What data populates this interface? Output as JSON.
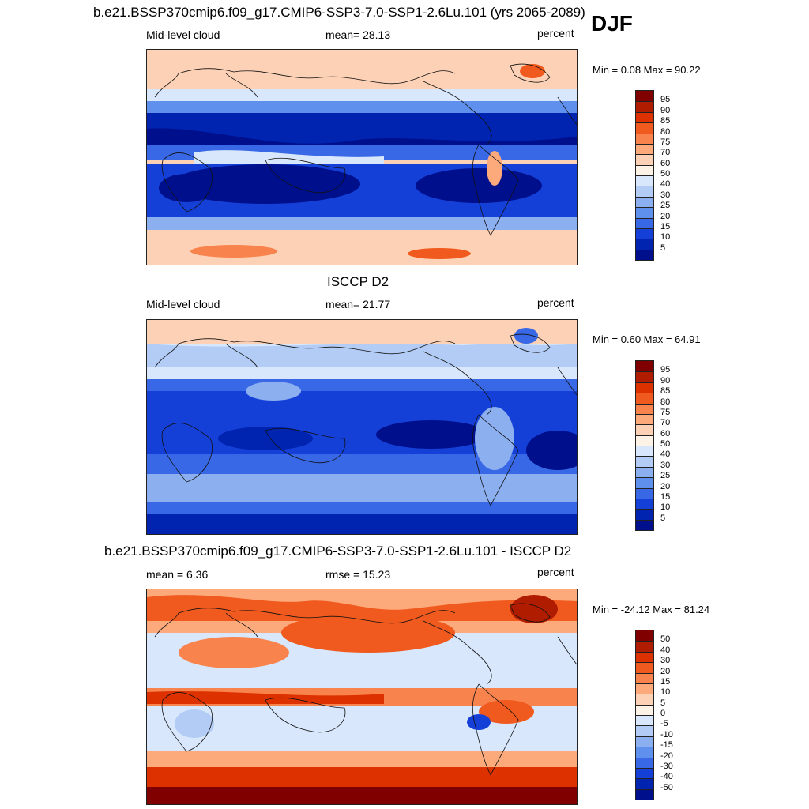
{
  "season": "DJF",
  "panels": [
    {
      "title": "b.e21.BSSP370cmip6.f09_g17.CMIP6-SSP3-7.0-SSP1-2.6Lu.101 (yrs 2065-2089)",
      "left_label": "Mid-level cloud",
      "center_label": "mean=  28.13",
      "units": "percent",
      "minmax": "Min =   0.08 Max =  90.22",
      "colorbar": {
        "labels": [
          "95",
          "90",
          "85",
          "80",
          "75",
          "70",
          "60",
          "50",
          "40",
          "30",
          "25",
          "20",
          "15",
          "10",
          "5"
        ],
        "colors": [
          "#800000",
          "#b01c00",
          "#dd3200",
          "#f05a1e",
          "#f8834c",
          "#fca97c",
          "#fdd1b5",
          "#fdf2e6",
          "#d8e7fb",
          "#b2ccf5",
          "#8caff0",
          "#6090ee",
          "#3868e6",
          "#1440d8",
          "#0023b0",
          "#000f8c"
        ]
      },
      "field_colors": {
        "high": "#fdd1b5",
        "mid": "#d8e7fb",
        "low": "#3868e6",
        "vlow": "#0023b0",
        "min": "#000f8c",
        "peak": "#f05a1e"
      }
    },
    {
      "title": "ISCCP D2",
      "left_label": "Mid-level cloud",
      "center_label": "mean=  21.77",
      "units": "percent",
      "minmax": "Min =   0.60 Max =  64.91",
      "colorbar": {
        "labels": [
          "95",
          "90",
          "85",
          "80",
          "75",
          "70",
          "60",
          "50",
          "40",
          "30",
          "25",
          "20",
          "15",
          "10",
          "5"
        ],
        "colors": [
          "#800000",
          "#b01c00",
          "#dd3200",
          "#f05a1e",
          "#f8834c",
          "#fca97c",
          "#fdd1b5",
          "#fdf2e6",
          "#d8e7fb",
          "#b2ccf5",
          "#8caff0",
          "#6090ee",
          "#3868e6",
          "#1440d8",
          "#0023b0",
          "#000f8c"
        ]
      }
    },
    {
      "title": "b.e21.BSSP370cmip6.f09_g17.CMIP6-SSP3-7.0-SSP1-2.6Lu.101 - ISCCP D2",
      "left_label": "mean =   6.36",
      "center_label": "rmse =  15.23",
      "units": "percent",
      "minmax": "Min = -24.12 Max =  81.24",
      "colorbar": {
        "labels": [
          "50",
          "40",
          "30",
          "20",
          "15",
          "10",
          "5",
          "0",
          "-5",
          "-10",
          "-15",
          "-20",
          "-30",
          "-40",
          "-50"
        ],
        "colors": [
          "#800000",
          "#b01c00",
          "#dd3200",
          "#f05a1e",
          "#f8834c",
          "#fca97c",
          "#fdd1b5",
          "#fdf2e6",
          "#d8e7fb",
          "#b2ccf5",
          "#8caff0",
          "#6090ee",
          "#3868e6",
          "#1440d8",
          "#0023b0",
          "#000f8c"
        ]
      }
    }
  ]
}
